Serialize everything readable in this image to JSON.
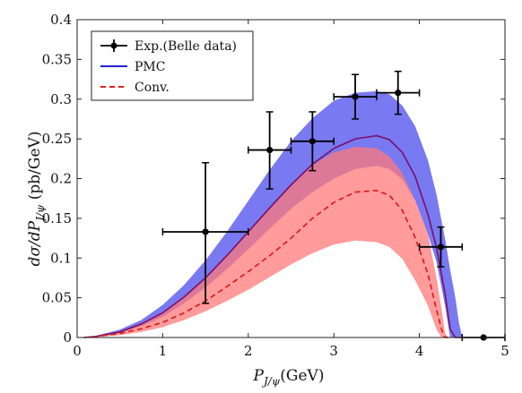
{
  "chart_data": {
    "type": "line",
    "title": "",
    "xlabel": {
      "prefix": "P",
      "sub": "J/ψ",
      "suffix": "(GeV)"
    },
    "ylabel": {
      "prefix": "dσ/dP",
      "sub": "J/ψ",
      "suffix": " (pb/GeV)"
    },
    "xlim": [
      0,
      5
    ],
    "ylim": [
      0,
      0.4
    ],
    "xticks": [
      0,
      1,
      2,
      3,
      4,
      5
    ],
    "yticks": [
      0,
      0.05,
      0.1,
      0.15,
      0.2,
      0.25,
      0.3,
      0.35,
      0.4
    ],
    "xtick_labels": [
      "0",
      "1",
      "2",
      "3",
      "4",
      "5"
    ],
    "ytick_labels": [
      "0",
      "0.05",
      "0.1",
      "0.15",
      "0.2",
      "0.25",
      "0.3",
      "0.35",
      "0.4"
    ],
    "grid": false,
    "legend_position": "top-left",
    "legend": [
      {
        "label": "Exp.(Belle data)",
        "style": "errorbar",
        "color": "#000000"
      },
      {
        "label": "PMC",
        "style": "solid",
        "color": "#2020e0"
      },
      {
        "label": "Conv.",
        "style": "dashed",
        "color": "#e02020"
      }
    ],
    "series": [
      {
        "name": "Exp.(Belle data)",
        "kind": "errorbar",
        "color": "#000000",
        "points": [
          {
            "x": 1.5,
            "y": 0.133,
            "xerr": 0.5,
            "yerr_low": 0.09,
            "yerr_high": 0.087
          },
          {
            "x": 2.25,
            "y": 0.236,
            "xerr": 0.25,
            "yerr_low": 0.049,
            "yerr_high": 0.048
          },
          {
            "x": 2.75,
            "y": 0.247,
            "xerr": 0.25,
            "yerr_low": 0.037,
            "yerr_high": 0.037
          },
          {
            "x": 3.25,
            "y": 0.303,
            "xerr": 0.25,
            "yerr_low": 0.028,
            "yerr_high": 0.028
          },
          {
            "x": 3.75,
            "y": 0.308,
            "xerr": 0.25,
            "yerr_low": 0.027,
            "yerr_high": 0.027
          },
          {
            "x": 4.25,
            "y": 0.114,
            "xerr": 0.25,
            "yerr_low": 0.025,
            "yerr_high": 0.025
          },
          {
            "x": 4.75,
            "y": 0.0,
            "xerr": 0.25,
            "yerr_low": 0.0,
            "yerr_high": 0.0
          }
        ]
      },
      {
        "name": "PMC",
        "kind": "line",
        "color": "#7a0f6b",
        "band_color": "#6a6af0",
        "x": [
          0.08,
          0.2,
          0.5,
          0.75,
          1.0,
          1.25,
          1.5,
          1.75,
          2.0,
          2.25,
          2.5,
          2.75,
          3.0,
          3.25,
          3.5,
          3.65,
          3.8,
          3.95,
          4.1,
          4.2,
          4.3,
          4.36,
          4.42,
          4.46,
          4.5
        ],
        "y": [
          0.0,
          0.001,
          0.007,
          0.017,
          0.031,
          0.051,
          0.075,
          0.103,
          0.133,
          0.163,
          0.192,
          0.218,
          0.238,
          0.25,
          0.254,
          0.249,
          0.233,
          0.203,
          0.155,
          0.113,
          0.055,
          0.01,
          0.0,
          0.0,
          0.0
        ],
        "band_low": [
          0.0,
          0.0005,
          0.006,
          0.014,
          0.026,
          0.043,
          0.063,
          0.086,
          0.111,
          0.137,
          0.162,
          0.183,
          0.2,
          0.212,
          0.216,
          0.212,
          0.199,
          0.173,
          0.13,
          0.095,
          0.04,
          0.0,
          0.0,
          0.0,
          0.0
        ],
        "band_high": [
          0.0,
          0.0015,
          0.01,
          0.022,
          0.041,
          0.066,
          0.097,
          0.133,
          0.172,
          0.211,
          0.247,
          0.276,
          0.298,
          0.308,
          0.31,
          0.306,
          0.292,
          0.266,
          0.223,
          0.18,
          0.124,
          0.085,
          0.05,
          0.02,
          0.0
        ]
      },
      {
        "name": "Conv.",
        "kind": "line",
        "color": "#d81818",
        "band_color": "#ff7a7a",
        "x": [
          0.08,
          0.2,
          0.5,
          0.75,
          1.0,
          1.25,
          1.5,
          1.75,
          2.0,
          2.25,
          2.5,
          2.75,
          3.0,
          3.25,
          3.5,
          3.65,
          3.8,
          3.95,
          4.1,
          4.2,
          4.26,
          4.3,
          4.34
        ],
        "y": [
          0.0,
          0.001,
          0.005,
          0.011,
          0.019,
          0.031,
          0.046,
          0.064,
          0.083,
          0.103,
          0.125,
          0.15,
          0.17,
          0.183,
          0.185,
          0.179,
          0.16,
          0.126,
          0.08,
          0.035,
          0.01,
          0.0,
          0.0
        ],
        "band_low": [
          0.0,
          0.0005,
          0.003,
          0.007,
          0.013,
          0.022,
          0.033,
          0.046,
          0.06,
          0.076,
          0.092,
          0.106,
          0.117,
          0.122,
          0.12,
          0.114,
          0.099,
          0.072,
          0.04,
          0.01,
          0.0,
          0.0,
          0.0
        ],
        "band_high": [
          0.0,
          0.0015,
          0.008,
          0.018,
          0.032,
          0.052,
          0.076,
          0.104,
          0.134,
          0.164,
          0.193,
          0.217,
          0.233,
          0.24,
          0.238,
          0.228,
          0.207,
          0.173,
          0.13,
          0.075,
          0.035,
          0.005,
          0.0
        ]
      }
    ]
  }
}
